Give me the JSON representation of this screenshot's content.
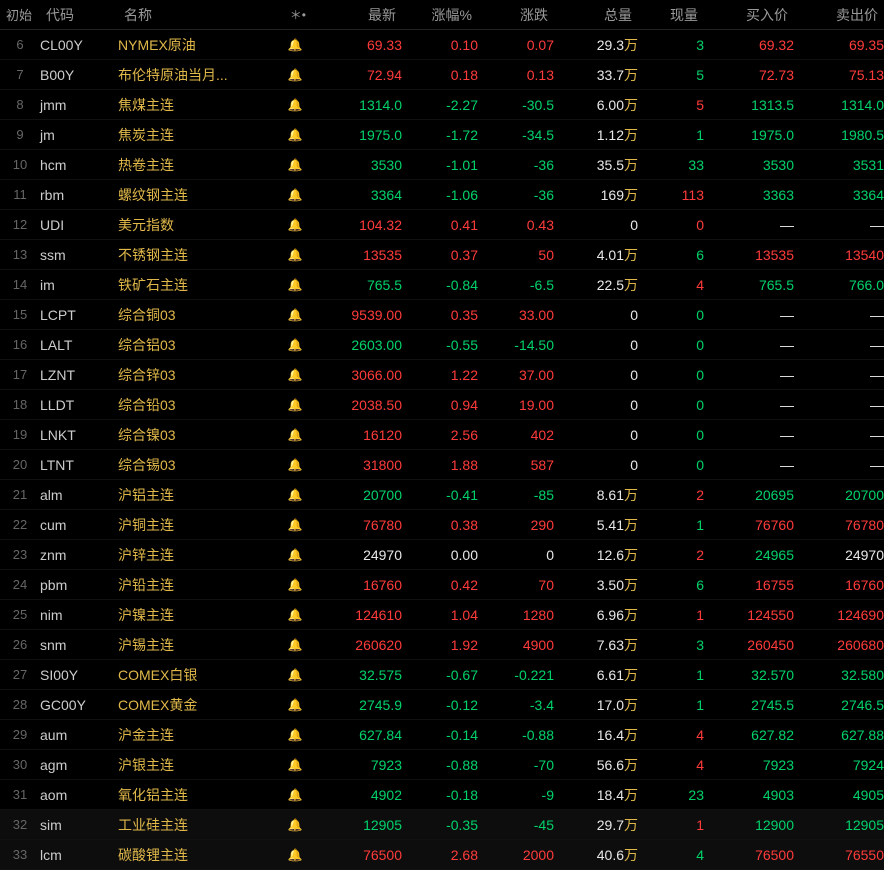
{
  "header": {
    "start": "初始",
    "code": "代码",
    "name": "名称",
    "star": "＊•",
    "last": "最新",
    "pct": "涨幅%",
    "chg": "涨跌",
    "vol": "总量",
    "cur": "现量",
    "bid": "买入价",
    "ask": "卖出价"
  },
  "vol_unit": "万",
  "rows": [
    {
      "idx": "6",
      "code": "CL00Y",
      "name": "NYMEX原油",
      "bell": 0,
      "last": "69.33",
      "last_c": "pos",
      "pct": "0.10",
      "pct_c": "pos",
      "chg": "0.07",
      "chg_c": "pos",
      "vol": "29.3",
      "vol_u": 1,
      "cur": "3",
      "cur_c": "neg",
      "bid": "69.32",
      "bid_c": "pos",
      "ask": "69.35",
      "ask_c": "pos"
    },
    {
      "idx": "7",
      "code": "B00Y",
      "name": "布伦特原油当月...",
      "bell": 0,
      "last": "72.94",
      "last_c": "pos",
      "pct": "0.18",
      "pct_c": "pos",
      "chg": "0.13",
      "chg_c": "pos",
      "vol": "33.7",
      "vol_u": 1,
      "cur": "5",
      "cur_c": "neg",
      "bid": "72.73",
      "bid_c": "pos",
      "ask": "75.13",
      "ask_c": "pos"
    },
    {
      "idx": "8",
      "code": "jmm",
      "name": "焦煤主连",
      "bell": 0,
      "last": "1314.0",
      "last_c": "neg",
      "pct": "-2.27",
      "pct_c": "neg",
      "chg": "-30.5",
      "chg_c": "neg",
      "vol": "6.00",
      "vol_u": 1,
      "cur": "5",
      "cur_c": "pos",
      "bid": "1313.5",
      "bid_c": "neg",
      "ask": "1314.0",
      "ask_c": "neg"
    },
    {
      "idx": "9",
      "code": "jm",
      "name": "焦炭主连",
      "bell": 0,
      "last": "1975.0",
      "last_c": "neg",
      "pct": "-1.72",
      "pct_c": "neg",
      "chg": "-34.5",
      "chg_c": "neg",
      "vol": "1.12",
      "vol_u": 1,
      "cur": "1",
      "cur_c": "neg",
      "bid": "1975.0",
      "bid_c": "neg",
      "ask": "1980.5",
      "ask_c": "neg"
    },
    {
      "idx": "10",
      "code": "hcm",
      "name": "热卷主连",
      "bell": 0,
      "last": "3530",
      "last_c": "neg",
      "pct": "-1.01",
      "pct_c": "neg",
      "chg": "-36",
      "chg_c": "neg",
      "vol": "35.5",
      "vol_u": 1,
      "cur": "33",
      "cur_c": "neg",
      "bid": "3530",
      "bid_c": "neg",
      "ask": "3531",
      "ask_c": "neg"
    },
    {
      "idx": "11",
      "code": "rbm",
      "name": "螺纹钢主连",
      "bell": 0,
      "last": "3364",
      "last_c": "neg",
      "pct": "-1.06",
      "pct_c": "neg",
      "chg": "-36",
      "chg_c": "neg",
      "vol": "169",
      "vol_u": 1,
      "cur": "113",
      "cur_c": "pos",
      "bid": "3363",
      "bid_c": "neg",
      "ask": "3364",
      "ask_c": "neg"
    },
    {
      "idx": "12",
      "code": "UDI",
      "name": "美元指数",
      "bell": 0,
      "last": "104.32",
      "last_c": "pos",
      "pct": "0.41",
      "pct_c": "pos",
      "chg": "0.43",
      "chg_c": "pos",
      "vol": "0",
      "vol_u": 0,
      "cur": "0",
      "cur_c": "pos",
      "bid": "—",
      "bid_c": "neu",
      "ask": "—",
      "ask_c": "neu"
    },
    {
      "idx": "13",
      "code": "ssm",
      "name": "不锈钢主连",
      "bell": 0,
      "last": "13535",
      "last_c": "pos",
      "pct": "0.37",
      "pct_c": "pos",
      "chg": "50",
      "chg_c": "pos",
      "vol": "4.01",
      "vol_u": 1,
      "cur": "6",
      "cur_c": "neg",
      "bid": "13535",
      "bid_c": "pos",
      "ask": "13540",
      "ask_c": "pos"
    },
    {
      "idx": "14",
      "code": "im",
      "name": "铁矿石主连",
      "bell": 0,
      "last": "765.5",
      "last_c": "neg",
      "pct": "-0.84",
      "pct_c": "neg",
      "chg": "-6.5",
      "chg_c": "neg",
      "vol": "22.5",
      "vol_u": 1,
      "cur": "4",
      "cur_c": "pos",
      "bid": "765.5",
      "bid_c": "neg",
      "ask": "766.0",
      "ask_c": "neg"
    },
    {
      "idx": "15",
      "code": "LCPT",
      "name": "综合铜03",
      "bell": 0,
      "last": "9539.00",
      "last_c": "pos",
      "pct": "0.35",
      "pct_c": "pos",
      "chg": "33.00",
      "chg_c": "pos",
      "vol": "0",
      "vol_u": 0,
      "cur": "0",
      "cur_c": "neg",
      "bid": "—",
      "bid_c": "neu",
      "ask": "—",
      "ask_c": "neu"
    },
    {
      "idx": "16",
      "code": "LALT",
      "name": "综合铝03",
      "bell": 0,
      "last": "2603.00",
      "last_c": "neg",
      "pct": "-0.55",
      "pct_c": "neg",
      "chg": "-14.50",
      "chg_c": "neg",
      "vol": "0",
      "vol_u": 0,
      "cur": "0",
      "cur_c": "neg",
      "bid": "—",
      "bid_c": "neu",
      "ask": "—",
      "ask_c": "neu"
    },
    {
      "idx": "17",
      "code": "LZNT",
      "name": "综合锌03",
      "bell": 0,
      "last": "3066.00",
      "last_c": "pos",
      "pct": "1.22",
      "pct_c": "pos",
      "chg": "37.00",
      "chg_c": "pos",
      "vol": "0",
      "vol_u": 0,
      "cur": "0",
      "cur_c": "neg",
      "bid": "—",
      "bid_c": "neu",
      "ask": "—",
      "ask_c": "neu"
    },
    {
      "idx": "18",
      "code": "LLDT",
      "name": "综合铅03",
      "bell": 0,
      "last": "2038.50",
      "last_c": "pos",
      "pct": "0.94",
      "pct_c": "pos",
      "chg": "19.00",
      "chg_c": "pos",
      "vol": "0",
      "vol_u": 0,
      "cur": "0",
      "cur_c": "neg",
      "bid": "—",
      "bid_c": "neu",
      "ask": "—",
      "ask_c": "neu"
    },
    {
      "idx": "19",
      "code": "LNKT",
      "name": "综合镍03",
      "bell": 0,
      "last": "16120",
      "last_c": "pos",
      "pct": "2.56",
      "pct_c": "pos",
      "chg": "402",
      "chg_c": "pos",
      "vol": "0",
      "vol_u": 0,
      "cur": "0",
      "cur_c": "neg",
      "bid": "—",
      "bid_c": "neu",
      "ask": "—",
      "ask_c": "neu"
    },
    {
      "idx": "20",
      "code": "LTNT",
      "name": "综合锡03",
      "bell": 0,
      "last": "31800",
      "last_c": "pos",
      "pct": "1.88",
      "pct_c": "pos",
      "chg": "587",
      "chg_c": "pos",
      "vol": "0",
      "vol_u": 0,
      "cur": "0",
      "cur_c": "neg",
      "bid": "—",
      "bid_c": "neu",
      "ask": "—",
      "ask_c": "neu"
    },
    {
      "idx": "21",
      "code": "alm",
      "name": "沪铝主连",
      "bell": 0,
      "last": "20700",
      "last_c": "neg",
      "pct": "-0.41",
      "pct_c": "neg",
      "chg": "-85",
      "chg_c": "neg",
      "vol": "8.61",
      "vol_u": 1,
      "cur": "2",
      "cur_c": "pos",
      "bid": "20695",
      "bid_c": "neg",
      "ask": "20700",
      "ask_c": "neg"
    },
    {
      "idx": "22",
      "code": "cum",
      "name": "沪铜主连",
      "bell": 1,
      "last": "76780",
      "last_c": "pos",
      "pct": "0.38",
      "pct_c": "pos",
      "chg": "290",
      "chg_c": "pos",
      "vol": "5.41",
      "vol_u": 1,
      "cur": "1",
      "cur_c": "neg",
      "bid": "76760",
      "bid_c": "pos",
      "ask": "76780",
      "ask_c": "pos"
    },
    {
      "idx": "23",
      "code": "znm",
      "name": "沪锌主连",
      "bell": 0,
      "last": "24970",
      "last_c": "neu",
      "pct": "0.00",
      "pct_c": "neu",
      "chg": "0",
      "chg_c": "neu",
      "vol": "12.6",
      "vol_u": 1,
      "cur": "2",
      "cur_c": "pos",
      "bid": "24965",
      "bid_c": "neg",
      "ask": "24970",
      "ask_c": "neu"
    },
    {
      "idx": "24",
      "code": "pbm",
      "name": "沪铅主连",
      "bell": 0,
      "last": "16760",
      "last_c": "pos",
      "pct": "0.42",
      "pct_c": "pos",
      "chg": "70",
      "chg_c": "pos",
      "vol": "3.50",
      "vol_u": 1,
      "cur": "6",
      "cur_c": "neg",
      "bid": "16755",
      "bid_c": "pos",
      "ask": "16760",
      "ask_c": "pos"
    },
    {
      "idx": "25",
      "code": "nim",
      "name": "沪镍主连",
      "bell": 0,
      "last": "124610",
      "last_c": "pos",
      "pct": "1.04",
      "pct_c": "pos",
      "chg": "1280",
      "chg_c": "pos",
      "vol": "6.96",
      "vol_u": 1,
      "cur": "1",
      "cur_c": "pos",
      "bid": "124550",
      "bid_c": "pos",
      "ask": "124690",
      "ask_c": "pos"
    },
    {
      "idx": "26",
      "code": "snm",
      "name": "沪锡主连",
      "bell": 0,
      "last": "260620",
      "last_c": "pos",
      "pct": "1.92",
      "pct_c": "pos",
      "chg": "4900",
      "chg_c": "pos",
      "vol": "7.63",
      "vol_u": 1,
      "cur": "3",
      "cur_c": "neg",
      "bid": "260450",
      "bid_c": "pos",
      "ask": "260680",
      "ask_c": "pos"
    },
    {
      "idx": "27",
      "code": "SI00Y",
      "name": "COMEX白银",
      "bell": 1,
      "last": "32.575",
      "last_c": "neg",
      "pct": "-0.67",
      "pct_c": "neg",
      "chg": "-0.221",
      "chg_c": "neg",
      "vol": "6.61",
      "vol_u": 1,
      "cur": "1",
      "cur_c": "neg",
      "bid": "32.570",
      "bid_c": "neg",
      "ask": "32.580",
      "ask_c": "neg"
    },
    {
      "idx": "28",
      "code": "GC00Y",
      "name": "COMEX黄金",
      "bell": 0,
      "last": "2745.9",
      "last_c": "neg",
      "pct": "-0.12",
      "pct_c": "neg",
      "chg": "-3.4",
      "chg_c": "neg",
      "vol": "17.0",
      "vol_u": 1,
      "cur": "1",
      "cur_c": "neg",
      "bid": "2745.5",
      "bid_c": "neg",
      "ask": "2746.5",
      "ask_c": "neg"
    },
    {
      "idx": "29",
      "code": "aum",
      "name": "沪金主连",
      "bell": 1,
      "last": "627.84",
      "last_c": "neg",
      "pct": "-0.14",
      "pct_c": "neg",
      "chg": "-0.88",
      "chg_c": "neg",
      "vol": "16.4",
      "vol_u": 1,
      "cur": "4",
      "cur_c": "pos",
      "bid": "627.82",
      "bid_c": "neg",
      "ask": "627.88",
      "ask_c": "neg"
    },
    {
      "idx": "30",
      "code": "agm",
      "name": "沪银主连",
      "bell": 0,
      "last": "7923",
      "last_c": "neg",
      "pct": "-0.88",
      "pct_c": "neg",
      "chg": "-70",
      "chg_c": "neg",
      "vol": "56.6",
      "vol_u": 1,
      "cur": "4",
      "cur_c": "pos",
      "bid": "7923",
      "bid_c": "neg",
      "ask": "7924",
      "ask_c": "neg"
    },
    {
      "idx": "31",
      "code": "aom",
      "name": "氧化铝主连",
      "bell": 0,
      "last": "4902",
      "last_c": "neg",
      "pct": "-0.18",
      "pct_c": "neg",
      "chg": "-9",
      "chg_c": "neg",
      "vol": "18.4",
      "vol_u": 1,
      "cur": "23",
      "cur_c": "neg",
      "bid": "4903",
      "bid_c": "neg",
      "ask": "4905",
      "ask_c": "neg"
    },
    {
      "idx": "32",
      "code": "sim",
      "name": "工业硅主连",
      "bell": 0,
      "last": "12905",
      "last_c": "neg",
      "pct": "-0.35",
      "pct_c": "neg",
      "chg": "-45",
      "chg_c": "neg",
      "vol": "29.7",
      "vol_u": 1,
      "cur": "1",
      "cur_c": "pos",
      "bid": "12900",
      "bid_c": "neg",
      "ask": "12905",
      "ask_c": "neg",
      "alt": 1
    },
    {
      "idx": "33",
      "code": "lcm",
      "name": "碳酸锂主连",
      "bell": 0,
      "last": "76500",
      "last_c": "pos",
      "pct": "2.68",
      "pct_c": "pos",
      "chg": "2000",
      "chg_c": "pos",
      "vol": "40.6",
      "vol_u": 1,
      "cur": "4",
      "cur_c": "neg",
      "bid": "76500",
      "bid_c": "pos",
      "ask": "76550",
      "ask_c": "pos",
      "alt": 1
    }
  ]
}
